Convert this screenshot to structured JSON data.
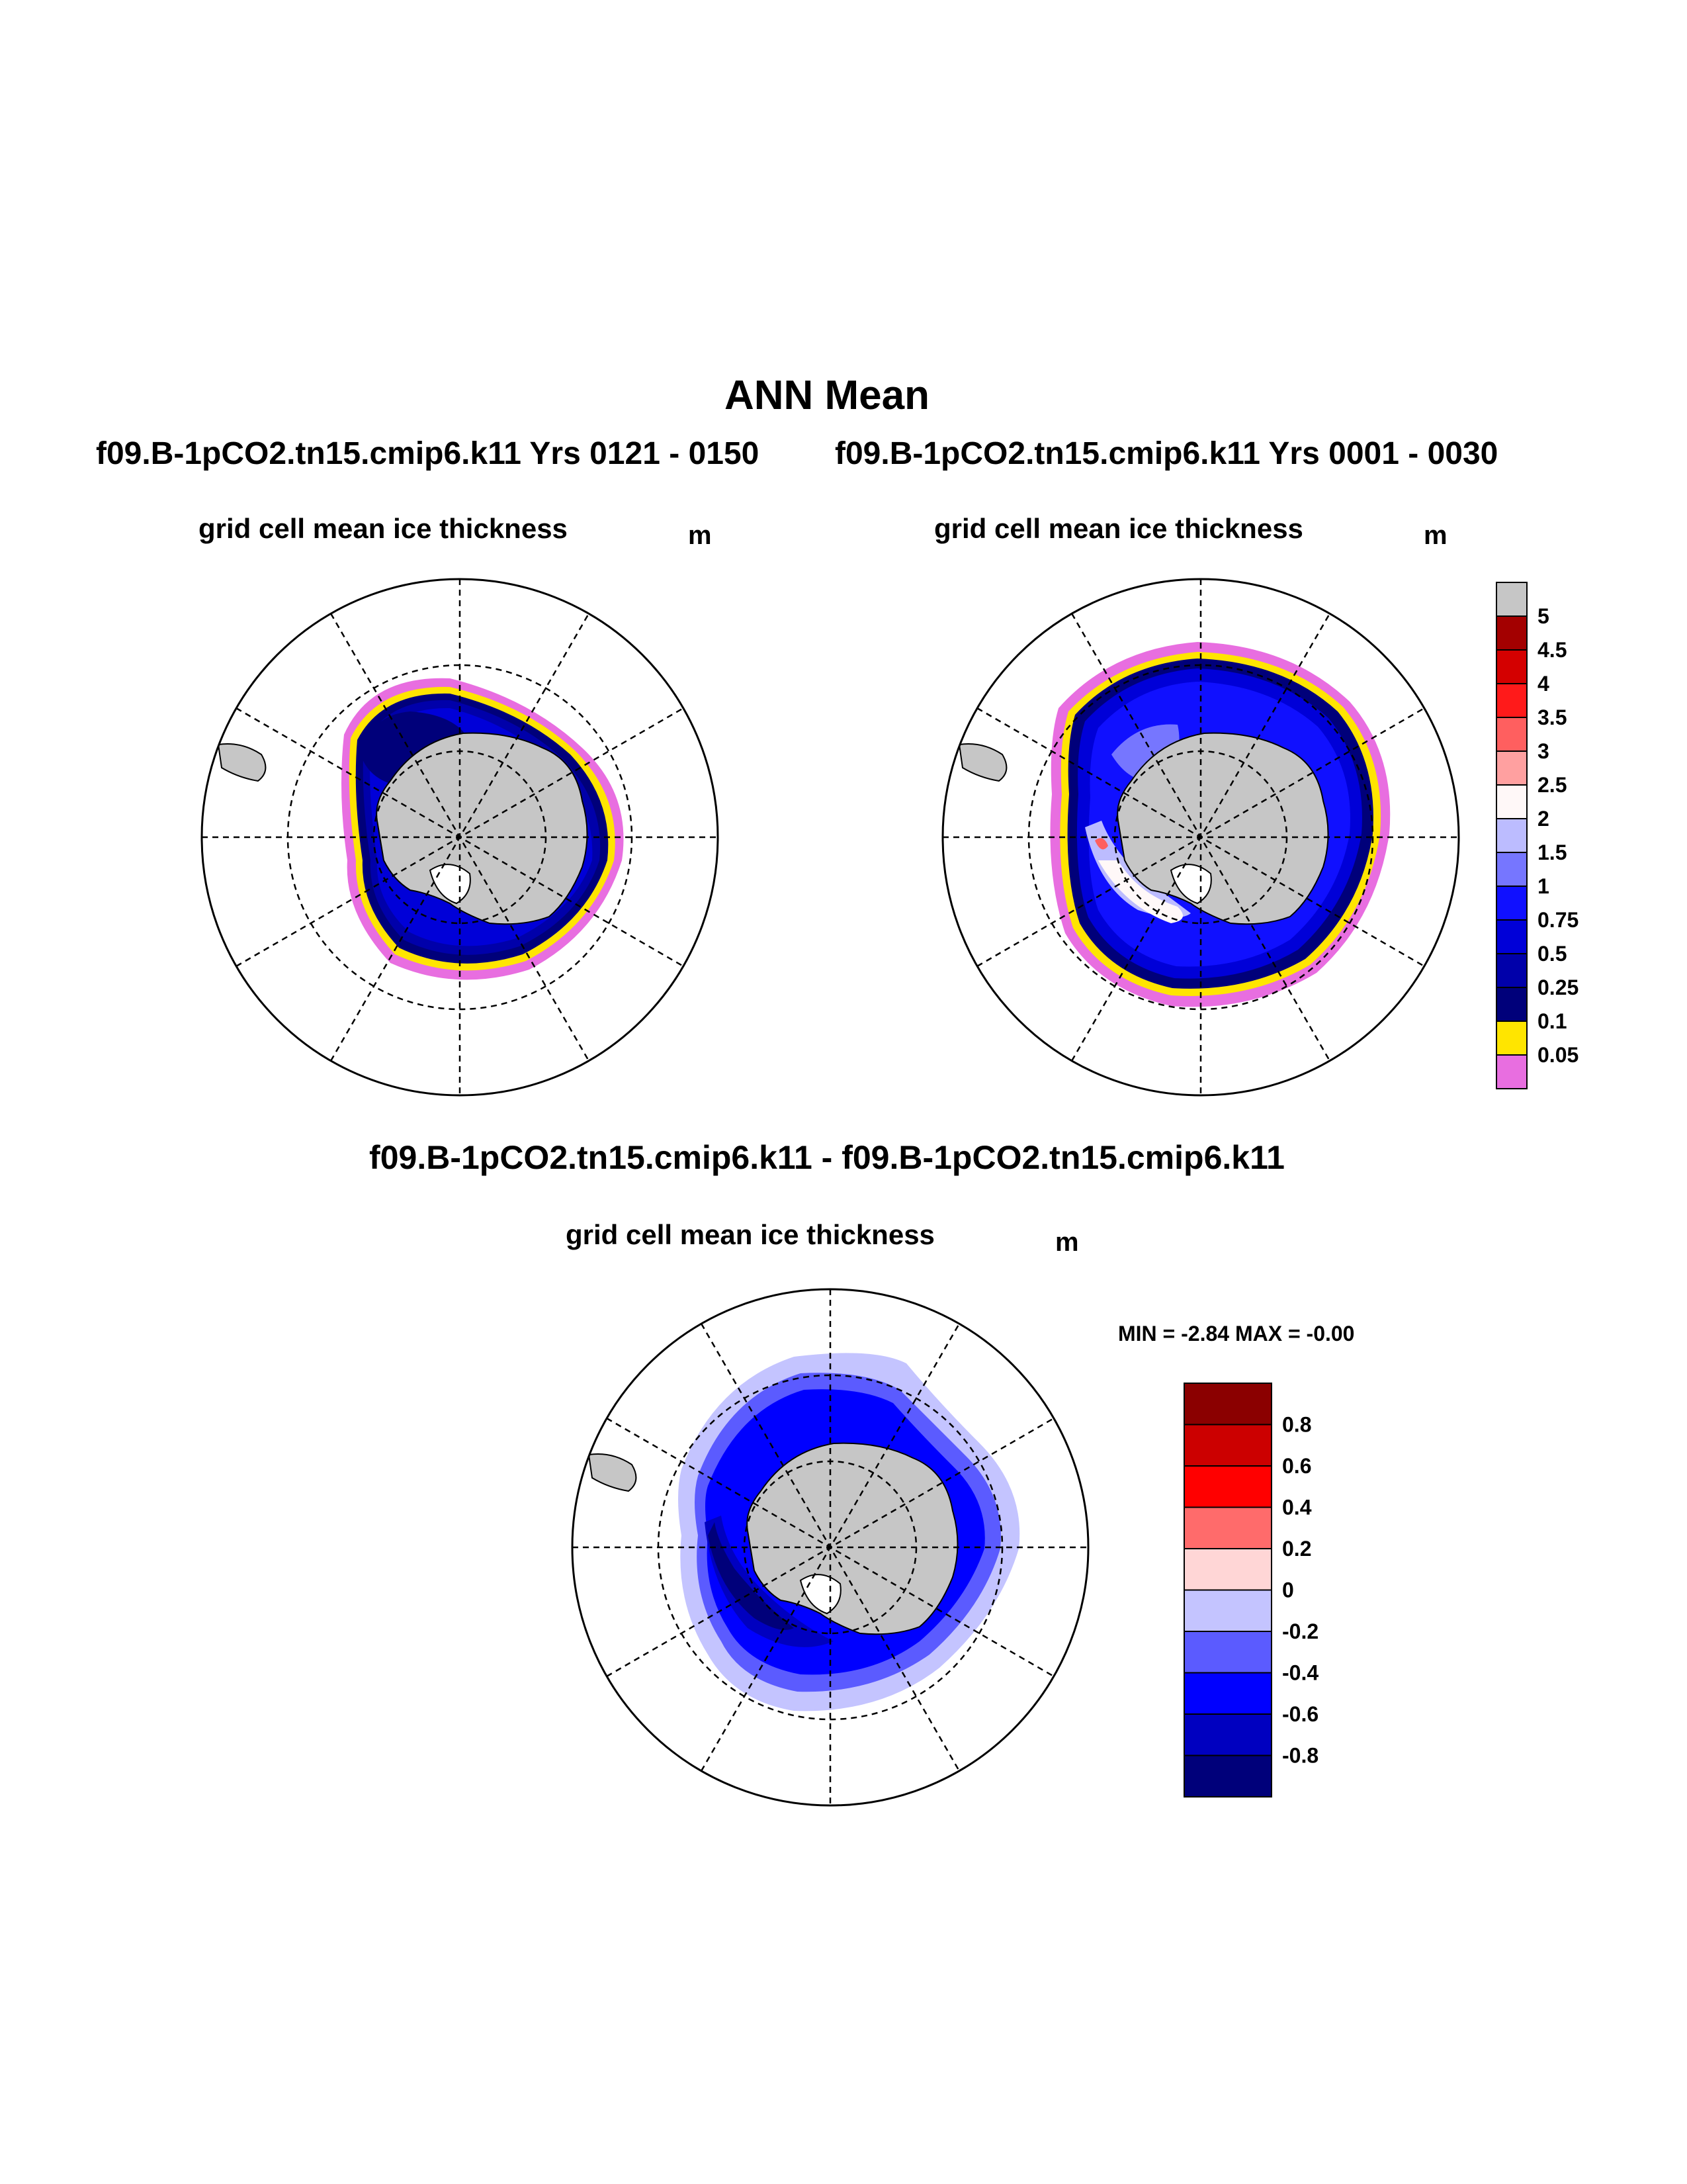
{
  "header": {
    "title": "ANN Mean",
    "case_left": "f09.B-1pCO2.tn15.cmip6.k11  Yrs 0121 - 0150",
    "case_right": "f09.B-1pCO2.tn15.cmip6.k11  Yrs 0001 - 0030",
    "diff_title": "f09.B-1pCO2.tn15.cmip6.k11 - f09.B-1pCO2.tn15.cmip6.k11"
  },
  "panels": [
    {
      "title": "grid cell mean ice thickness",
      "units": "m"
    },
    {
      "title": "grid cell mean ice thickness",
      "units": "m"
    },
    {
      "title": "grid cell mean ice thickness",
      "units": "m",
      "min_max": "MIN =  -2.84 MAX =  -0.00"
    }
  ],
  "legend_thickness": {
    "labels": [
      "5",
      "4.5",
      "4",
      "3.5",
      "3",
      "2.5",
      "2",
      "1.5",
      "1",
      "0.75",
      "0.5",
      "0.25",
      "0.1",
      "0.05"
    ],
    "colors": [
      "#c6c6c6",
      "#a30000",
      "#d40000",
      "#ff1a1a",
      "#ff5f5f",
      "#ffa0a0",
      "#fff8f8",
      "#bcbcff",
      "#7676ff",
      "#1010ff",
      "#0000d8",
      "#0000aa",
      "#00007a",
      "#ffe500",
      "#e86ee0"
    ]
  },
  "legend_diff": {
    "labels": [
      "0.8",
      "0.6",
      "0.4",
      "0.2",
      "0",
      "-0.2",
      "-0.4",
      "-0.6",
      "-0.8"
    ],
    "colors": [
      "#8b0000",
      "#cc0000",
      "#ff0000",
      "#ff6b6b",
      "#ffd6d6",
      "#c4c4ff",
      "#5b5bff",
      "#0000ff",
      "#0000c0",
      "#00007a"
    ]
  }
}
